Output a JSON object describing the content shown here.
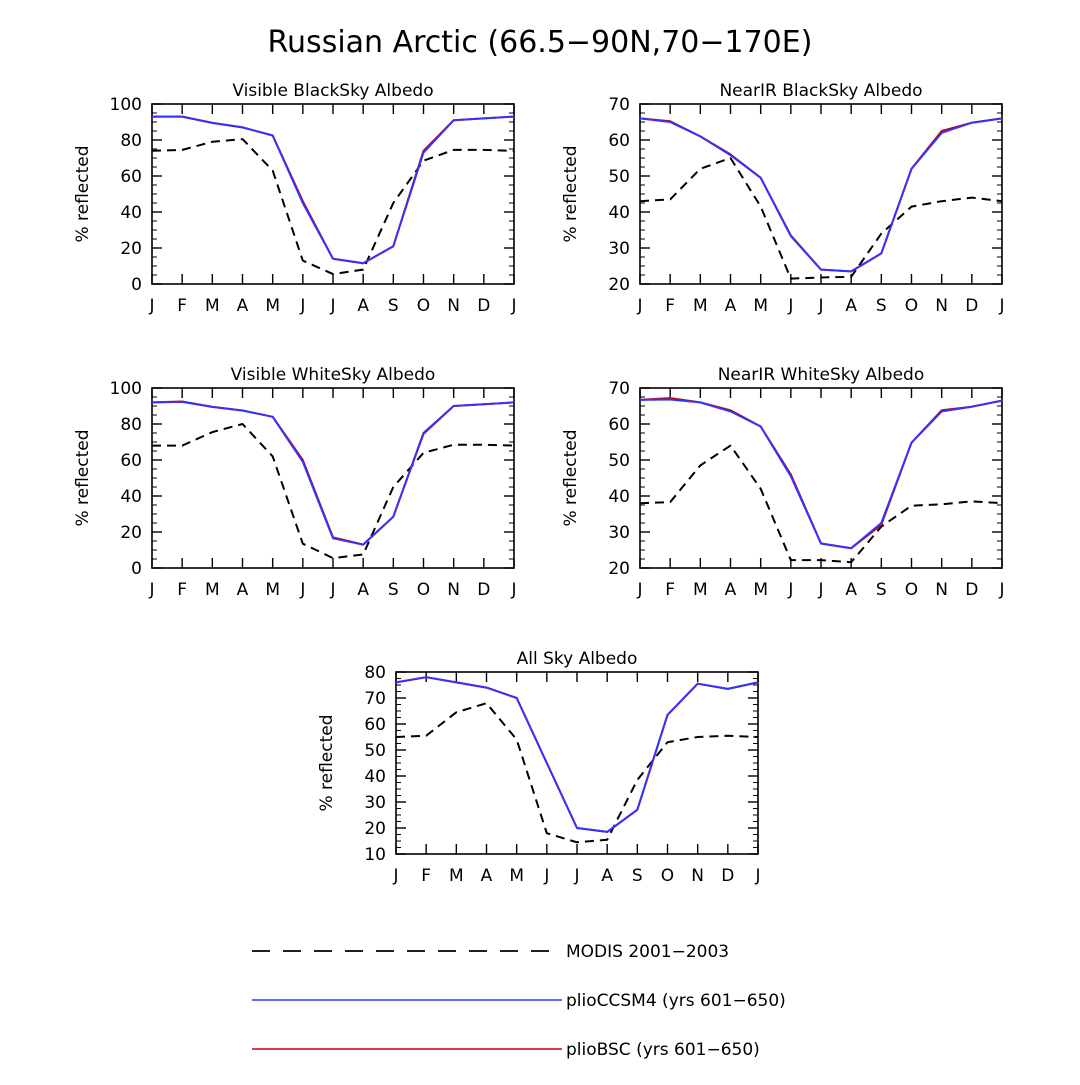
{
  "figure": {
    "title": "Russian Arctic (66.5−90N,70−170E)"
  },
  "series_style": {
    "MODIS 2001−2003": {
      "color": "#000000",
      "dash": "dashed"
    },
    "plioCCSM4 (yrs 601−650)": {
      "color": "#3333ff",
      "dash": "solid"
    },
    "plioBSC (yrs 601−650)": {
      "color": "#cc0000",
      "dash": "solid"
    }
  },
  "legend": {
    "items": [
      {
        "label": "MODIS 2001−2003",
        "color": "#000000",
        "dash": "dashed"
      },
      {
        "label": "plioCCSM4 (yrs 601−650)",
        "color": "#3333ff",
        "dash": "solid"
      },
      {
        "label": "plioBSC (yrs 601−650)",
        "color": "#cc0000",
        "dash": "solid"
      }
    ]
  },
  "chart_data": [
    {
      "id": "vis-black",
      "type": "line",
      "title": "Visible BlackSky Albedo",
      "xlabel": "",
      "ylabel": "% reflected",
      "categories": [
        "J",
        "F",
        "M",
        "A",
        "M",
        "J",
        "J",
        "A",
        "S",
        "O",
        "N",
        "D",
        "J"
      ],
      "ylim": [
        0,
        100
      ],
      "yticks": [
        0,
        20,
        40,
        60,
        80,
        100
      ],
      "series": [
        {
          "name": "plioBSC (yrs 601−650)",
          "values": [
            93,
            93,
            89.5,
            87,
            82.5,
            46,
            14,
            11.5,
            21,
            74,
            91,
            92,
            93
          ]
        },
        {
          "name": "plioCCSM4 (yrs 601−650)",
          "values": [
            93,
            93,
            89.5,
            87,
            82.5,
            45,
            14,
            11.5,
            21,
            73,
            91,
            92,
            93
          ]
        },
        {
          "name": "MODIS 2001−2003",
          "values": [
            74,
            74.5,
            79,
            80.5,
            63,
            13,
            5.5,
            8,
            45,
            68.5,
            74.5,
            74.5,
            74
          ]
        }
      ]
    },
    {
      "id": "nir-black",
      "type": "line",
      "title": "NearIR BlackSky Albedo",
      "xlabel": "",
      "ylabel": "% reflected",
      "categories": [
        "J",
        "F",
        "M",
        "A",
        "M",
        "J",
        "J",
        "A",
        "S",
        "O",
        "N",
        "D",
        "J"
      ],
      "ylim": [
        20,
        70
      ],
      "yticks": [
        20,
        30,
        40,
        50,
        60,
        70
      ],
      "series": [
        {
          "name": "plioBSC (yrs 601−650)",
          "values": [
            66,
            65.2,
            61,
            56,
            49.5,
            33.5,
            24,
            23.5,
            28.5,
            52,
            62.5,
            64.8,
            66
          ]
        },
        {
          "name": "plioCCSM4 (yrs 601−650)",
          "values": [
            66,
            65,
            61,
            55.8,
            49.5,
            33.3,
            24,
            23.5,
            28.5,
            52,
            62,
            64.8,
            66
          ]
        },
        {
          "name": "MODIS 2001−2003",
          "values": [
            43,
            43.5,
            52,
            55,
            41.5,
            21.5,
            21.8,
            22,
            34,
            41.5,
            43,
            44,
            43
          ]
        }
      ]
    },
    {
      "id": "vis-white",
      "type": "line",
      "title": "Visible WhiteSky Albedo",
      "xlabel": "",
      "ylabel": "% reflected",
      "categories": [
        "J",
        "F",
        "M",
        "A",
        "M",
        "J",
        "J",
        "A",
        "S",
        "O",
        "N",
        "D",
        "J"
      ],
      "ylim": [
        0,
        100
      ],
      "yticks": [
        0,
        20,
        40,
        60,
        80,
        100
      ],
      "series": [
        {
          "name": "plioBSC (yrs 601−650)",
          "values": [
            92,
            92.5,
            89.5,
            87.5,
            84,
            60,
            17,
            13,
            28.5,
            75,
            90,
            91,
            92
          ]
        },
        {
          "name": "plioCCSM4 (yrs 601−650)",
          "values": [
            92,
            92.3,
            89.5,
            87.5,
            84,
            59,
            16.5,
            13,
            28.5,
            74.5,
            90,
            91,
            92
          ]
        },
        {
          "name": "MODIS 2001−2003",
          "values": [
            68,
            68,
            75.5,
            80,
            62,
            13.5,
            5.5,
            7.5,
            45,
            64,
            68.5,
            68.5,
            68
          ]
        }
      ]
    },
    {
      "id": "nir-white",
      "type": "line",
      "title": "NearIR WhiteSky Albedo",
      "xlabel": "",
      "ylabel": "% reflected",
      "categories": [
        "J",
        "F",
        "M",
        "A",
        "M",
        "J",
        "J",
        "A",
        "S",
        "O",
        "N",
        "D",
        "J"
      ],
      "ylim": [
        20,
        70
      ],
      "yticks": [
        20,
        30,
        40,
        50,
        60,
        70
      ],
      "series": [
        {
          "name": "plioBSC (yrs 601−650)",
          "values": [
            66.7,
            67.2,
            66,
            63.8,
            59.3,
            46,
            26.8,
            25.5,
            32,
            54.8,
            63.8,
            64.8,
            66.5
          ]
        },
        {
          "name": "plioCCSM4 (yrs 601−650)",
          "values": [
            66.7,
            66.8,
            66,
            63.5,
            59.3,
            45.5,
            26.8,
            25.5,
            32.5,
            54.8,
            63.5,
            64.8,
            66.5
          ]
        },
        {
          "name": "MODIS 2001−2003",
          "values": [
            38,
            38.3,
            48.5,
            54,
            42,
            22.2,
            22.2,
            21.6,
            31.5,
            37.3,
            37.7,
            38.5,
            38
          ]
        }
      ]
    },
    {
      "id": "all-sky",
      "type": "line",
      "title": "All Sky Albedo",
      "xlabel": "",
      "ylabel": "% reflected",
      "categories": [
        "J",
        "F",
        "M",
        "A",
        "M",
        "J",
        "J",
        "A",
        "S",
        "O",
        "N",
        "D",
        "J"
      ],
      "ylim": [
        10,
        80
      ],
      "yticks": [
        10,
        20,
        30,
        40,
        50,
        60,
        70,
        80
      ],
      "series": [
        {
          "name": "plioBSC (yrs 601−650)",
          "values": [
            76,
            78,
            76,
            74,
            70,
            45,
            20,
            18.5,
            27,
            63.5,
            75.5,
            73.5,
            76
          ]
        },
        {
          "name": "plioCCSM4 (yrs 601−650)",
          "values": [
            76,
            78,
            76,
            74,
            70,
            45,
            20,
            18.5,
            27,
            63.5,
            75.5,
            73.5,
            76
          ]
        },
        {
          "name": "MODIS 2001−2003",
          "values": [
            55,
            55.5,
            64.5,
            68,
            54,
            18,
            14.5,
            15.5,
            38.5,
            53,
            55,
            55.5,
            55
          ]
        }
      ]
    }
  ]
}
